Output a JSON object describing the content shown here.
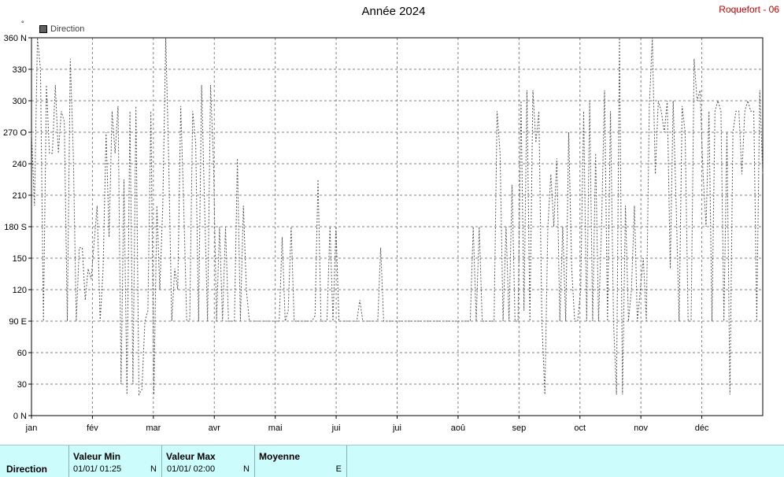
{
  "title": "Année 2024",
  "station": "Roquefort - 06",
  "unit_symbol": "°",
  "legend": {
    "label": "Direction",
    "color": "#606060"
  },
  "chart_data": {
    "type": "line",
    "title": "Année 2024",
    "ylim": [
      0,
      360
    ],
    "y_ticks": [
      {
        "value": 0,
        "label": "0 N"
      },
      {
        "value": 30,
        "label": "30"
      },
      {
        "value": 60,
        "label": "60"
      },
      {
        "value": 90,
        "label": "90 E"
      },
      {
        "value": 120,
        "label": "120"
      },
      {
        "value": 150,
        "label": "150"
      },
      {
        "value": 180,
        "label": "180 S"
      },
      {
        "value": 210,
        "label": "210"
      },
      {
        "value": 240,
        "label": "240"
      },
      {
        "value": 270,
        "label": "270 O"
      },
      {
        "value": 300,
        "label": "300"
      },
      {
        "value": 330,
        "label": "330"
      },
      {
        "value": 360,
        "label": "360 N"
      }
    ],
    "x_months": [
      "jan",
      "fév",
      "mar",
      "avr",
      "mai",
      "jui",
      "jui",
      "aoû",
      "sep",
      "oct",
      "nov",
      "déc"
    ],
    "grid": true,
    "series": [
      {
        "name": "Direction",
        "color": "#555555",
        "day_values": [
          270,
          200,
          360,
          330,
          90,
          315,
          250,
          250,
          315,
          250,
          290,
          280,
          90,
          340,
          250,
          90,
          160,
          160,
          110,
          140,
          130,
          165,
          200,
          90,
          140,
          270,
          170,
          290,
          250,
          295,
          30,
          225,
          20,
          290,
          30,
          295,
          20,
          25,
          90,
          100,
          290,
          20,
          200,
          120,
          200,
          360,
          240,
          90,
          140,
          120,
          295,
          200,
          90,
          90,
          290,
          260,
          90,
          315,
          200,
          90,
          315,
          240,
          90,
          180,
          90,
          180,
          90,
          90,
          90,
          245,
          90,
          200,
          120,
          90,
          90,
          90,
          90,
          90,
          90,
          90,
          90,
          90,
          90,
          90,
          170,
          90,
          100,
          180,
          90,
          90,
          90,
          90,
          90,
          90,
          90,
          95,
          225,
          90,
          90,
          90,
          180,
          90,
          180,
          90,
          90,
          90,
          90,
          90,
          90,
          90,
          110,
          90,
          90,
          90,
          90,
          90,
          90,
          160,
          90,
          90,
          90,
          90,
          90,
          90,
          90,
          90,
          90,
          90,
          90,
          90,
          90,
          90,
          90,
          90,
          90,
          90,
          90,
          90,
          90,
          90,
          90,
          90,
          90,
          90,
          90,
          90,
          90,
          90,
          180,
          90,
          180,
          90,
          90,
          90,
          90,
          90,
          290,
          250,
          90,
          180,
          90,
          220,
          90,
          90,
          300,
          100,
          310,
          90,
          310,
          260,
          290,
          90,
          20,
          180,
          230,
          180,
          245,
          90,
          180,
          90,
          270,
          140,
          90,
          90,
          120,
          290,
          90,
          300,
          90,
          250,
          90,
          180,
          310,
          90,
          290,
          90,
          20,
          360,
          20,
          200,
          90,
          120,
          200,
          90,
          120,
          150,
          90,
          295,
          360,
          230,
          300,
          290,
          270,
          300,
          140,
          300,
          200,
          90,
          295,
          270,
          90,
          90,
          340,
          300,
          310,
          230,
          180,
          290,
          90,
          290,
          300,
          290,
          90,
          270,
          20,
          270,
          290,
          290,
          230,
          290,
          300,
          290,
          290,
          90,
          310,
          230
        ]
      }
    ]
  },
  "summary": {
    "param_label": "Direction",
    "min_header": "Valeur Min",
    "min_value": "01/01/  01:25",
    "min_dir": "N",
    "max_header": "Valeur Max",
    "max_value": "01/01/  02:00",
    "max_dir": "N",
    "mean_header": "Moyenne",
    "mean_dir": "E"
  }
}
